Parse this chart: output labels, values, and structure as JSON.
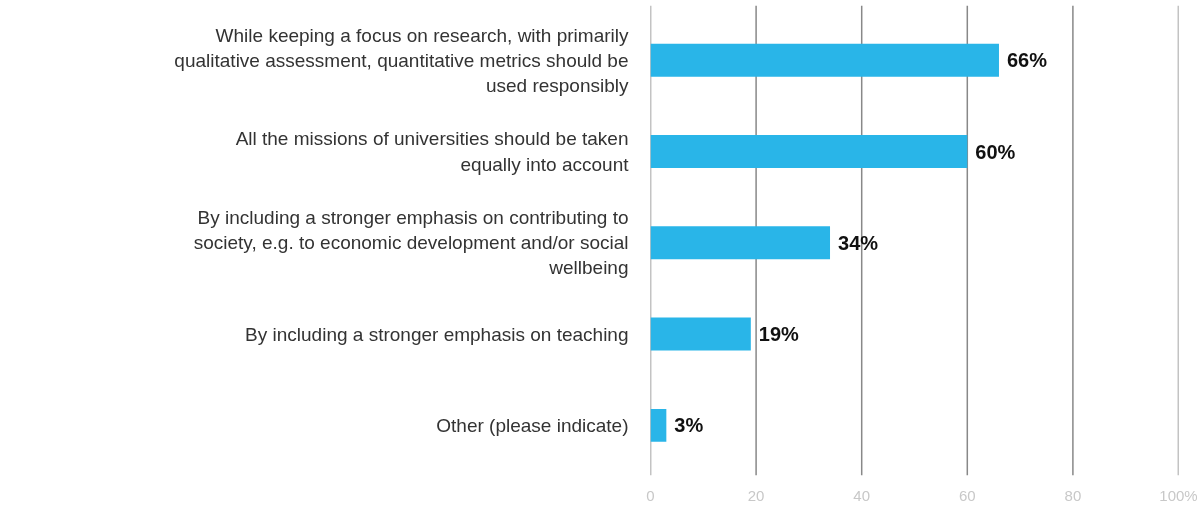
{
  "chart_data": {
    "type": "bar",
    "orientation": "horizontal",
    "categories": [
      "While keeping a focus on research, with primarily qualitative assessment, quantitative metrics should be used responsibly",
      "All the missions of universities should be taken equally into account",
      "By including a stronger emphasis on contributing to society, e.g. to economic development and/or social wellbeing",
      "By including a stronger emphasis on teaching",
      "Other (please indicate)"
    ],
    "values": [
      66,
      60,
      34,
      19,
      3
    ],
    "value_labels": [
      "66%",
      "60%",
      "34%",
      "19%",
      "3%"
    ],
    "color": "#29b5e8",
    "xlim": [
      0,
      100
    ],
    "xticks": [
      0,
      20,
      40,
      60,
      80,
      {
        "value": 100,
        "label": "100%"
      }
    ],
    "grid": "x"
  }
}
